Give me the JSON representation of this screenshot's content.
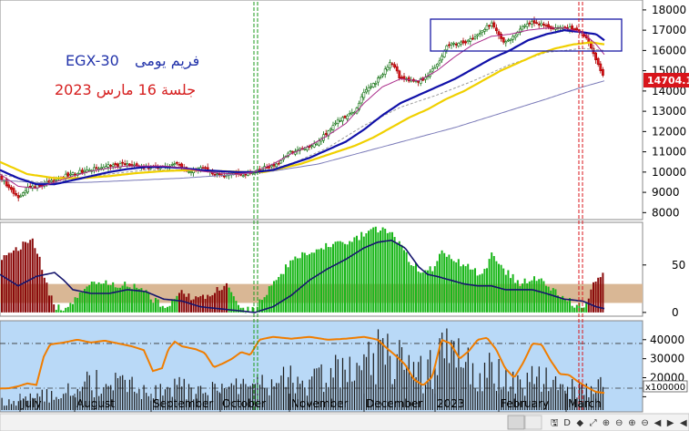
{
  "chart_data": {
    "type": "candlestick",
    "title_en": "EGX-30",
    "title_ar": "فريم يومى",
    "subtitle_ar": "جلسة 16 مارس 2023",
    "last_price_label": "14704.1",
    "price_axis": {
      "min": 7700,
      "max": 18400,
      "ticks": [
        8000,
        9000,
        10000,
        11000,
        12000,
        13000,
        14000,
        15000,
        16000,
        17000,
        18000
      ]
    },
    "indicator_axis": {
      "min": -3,
      "max": 93,
      "ticks": [
        0,
        50
      ],
      "band": [
        10,
        30
      ]
    },
    "volume_axis": {
      "min": 3000,
      "max": 49000,
      "ticks": [
        10000,
        20000,
        30000,
        40000
      ],
      "ticks_label": [
        "10000",
        "20000",
        "30000",
        "40000"
      ],
      "dash_levels": [
        38000,
        14500
      ],
      "unit_label": "x100000"
    },
    "month_labels": [
      "July",
      "August",
      "September",
      "October",
      "November",
      "December",
      "2023",
      "February",
      "March"
    ],
    "month_positions": [
      24,
      84,
      168,
      244,
      320,
      402,
      480,
      550,
      624
    ],
    "nav_icons": [
      "scroll-bar",
      "save-icon",
      "delete-icon",
      "drag-icon",
      "zoom-in-icon",
      "zoom-out-icon",
      "plus-icon",
      "minus-icon",
      "back-icon",
      "forward-icon",
      "toggle-icon"
    ],
    "price_anchors": [
      [
        0,
        9800
      ],
      [
        5,
        9500
      ],
      [
        10,
        9200
      ],
      [
        16,
        8900
      ],
      [
        20,
        8700
      ],
      [
        25,
        9000
      ],
      [
        30,
        9200
      ],
      [
        40,
        9300
      ],
      [
        55,
        9500
      ],
      [
        70,
        9800
      ],
      [
        85,
        10000
      ],
      [
        95,
        10050
      ],
      [
        105,
        10200
      ],
      [
        120,
        10300
      ],
      [
        135,
        10400
      ],
      [
        150,
        10300
      ],
      [
        165,
        10200
      ],
      [
        180,
        10300
      ],
      [
        195,
        10400
      ],
      [
        205,
        10000
      ],
      [
        215,
        10100
      ],
      [
        225,
        10200
      ],
      [
        235,
        9900
      ],
      [
        245,
        9800
      ],
      [
        255,
        9900
      ],
      [
        265,
        9850
      ],
      [
        280,
        10000
      ],
      [
        290,
        10200
      ],
      [
        300,
        10300
      ],
      [
        310,
        10600
      ],
      [
        320,
        11000
      ],
      [
        330,
        11100
      ],
      [
        340,
        11200
      ],
      [
        350,
        11500
      ],
      [
        360,
        12000
      ],
      [
        370,
        12500
      ],
      [
        380,
        12700
      ],
      [
        390,
        13000
      ],
      [
        400,
        14000
      ],
      [
        410,
        14300
      ],
      [
        420,
        14800
      ],
      [
        430,
        15500
      ],
      [
        440,
        14600
      ],
      [
        450,
        14500
      ],
      [
        460,
        14500
      ],
      [
        470,
        14700
      ],
      [
        478,
        15200
      ],
      [
        485,
        15600
      ],
      [
        490,
        16200
      ],
      [
        500,
        16300
      ],
      [
        510,
        16400
      ],
      [
        520,
        16600
      ],
      [
        530,
        17000
      ],
      [
        540,
        17300
      ],
      [
        548,
        16700
      ],
      [
        555,
        16400
      ],
      [
        565,
        16700
      ],
      [
        575,
        17200
      ],
      [
        585,
        17400
      ],
      [
        595,
        17300
      ],
      [
        605,
        17100
      ],
      [
        615,
        17100
      ],
      [
        625,
        17100
      ],
      [
        635,
        17000
      ],
      [
        640,
        16800
      ],
      [
        645,
        16500
      ],
      [
        650,
        16000
      ],
      [
        655,
        15500
      ],
      [
        660,
        14900
      ],
      [
        664,
        14700
      ]
    ],
    "ma_fast": [
      [
        0,
        9900
      ],
      [
        20,
        9300
      ],
      [
        40,
        9200
      ],
      [
        60,
        9500
      ],
      [
        80,
        9800
      ],
      [
        100,
        10050
      ],
      [
        120,
        10200
      ],
      [
        140,
        10300
      ],
      [
        160,
        10300
      ],
      [
        180,
        10300
      ],
      [
        200,
        10200
      ],
      [
        220,
        10050
      ],
      [
        240,
        9950
      ],
      [
        260,
        9900
      ],
      [
        280,
        10000
      ],
      [
        300,
        10400
      ],
      [
        320,
        10900
      ],
      [
        340,
        11300
      ],
      [
        360,
        11800
      ],
      [
        380,
        12400
      ],
      [
        400,
        13400
      ],
      [
        420,
        14200
      ],
      [
        440,
        14600
      ],
      [
        460,
        14500
      ],
      [
        480,
        15000
      ],
      [
        500,
        15700
      ],
      [
        520,
        16300
      ],
      [
        540,
        16700
      ],
      [
        560,
        16800
      ],
      [
        580,
        17000
      ],
      [
        600,
        17100
      ],
      [
        620,
        17100
      ],
      [
        640,
        16900
      ],
      [
        655,
        16300
      ],
      [
        664,
        15800
      ]
    ],
    "ma_blue": [
      [
        0,
        10100
      ],
      [
        20,
        9700
      ],
      [
        40,
        9400
      ],
      [
        60,
        9400
      ],
      [
        80,
        9600
      ],
      [
        100,
        9800
      ],
      [
        120,
        10000
      ],
      [
        140,
        10150
      ],
      [
        160,
        10250
      ],
      [
        180,
        10250
      ],
      [
        200,
        10200
      ],
      [
        220,
        10100
      ],
      [
        240,
        10050
      ],
      [
        260,
        10000
      ],
      [
        280,
        10000
      ],
      [
        300,
        10100
      ],
      [
        320,
        10400
      ],
      [
        340,
        10700
      ],
      [
        360,
        11100
      ],
      [
        380,
        11500
      ],
      [
        400,
        12100
      ],
      [
        420,
        12800
      ],
      [
        440,
        13400
      ],
      [
        460,
        13800
      ],
      [
        480,
        14200
      ],
      [
        500,
        14600
      ],
      [
        520,
        15100
      ],
      [
        540,
        15600
      ],
      [
        560,
        16000
      ],
      [
        580,
        16500
      ],
      [
        600,
        16800
      ],
      [
        620,
        17000
      ],
      [
        640,
        16900
      ],
      [
        655,
        16800
      ],
      [
        664,
        16500
      ]
    ],
    "ma_yellow": [
      [
        0,
        10500
      ],
      [
        30,
        9900
      ],
      [
        60,
        9700
      ],
      [
        90,
        9700
      ],
      [
        120,
        9800
      ],
      [
        150,
        9950
      ],
      [
        180,
        10050
      ],
      [
        210,
        10100
      ],
      [
        240,
        10050
      ],
      [
        270,
        10000
      ],
      [
        290,
        10000
      ],
      [
        310,
        10200
      ],
      [
        330,
        10400
      ],
      [
        350,
        10700
      ],
      [
        370,
        11000
      ],
      [
        390,
        11300
      ],
      [
        410,
        11700
      ],
      [
        430,
        12200
      ],
      [
        450,
        12700
      ],
      [
        470,
        13100
      ],
      [
        490,
        13600
      ],
      [
        510,
        14000
      ],
      [
        530,
        14500
      ],
      [
        550,
        15000
      ],
      [
        570,
        15400
      ],
      [
        590,
        15800
      ],
      [
        610,
        16100
      ],
      [
        630,
        16300
      ],
      [
        650,
        16400
      ],
      [
        664,
        16300
      ]
    ],
    "ma_long": [
      [
        0,
        9600
      ],
      [
        50,
        9450
      ],
      [
        100,
        9500
      ],
      [
        150,
        9600
      ],
      [
        200,
        9700
      ],
      [
        250,
        9850
      ],
      [
        300,
        10050
      ],
      [
        350,
        10400
      ],
      [
        400,
        11000
      ],
      [
        450,
        11600
      ],
      [
        500,
        12200
      ],
      [
        550,
        12900
      ],
      [
        600,
        13600
      ],
      [
        640,
        14200
      ],
      [
        664,
        14500
      ]
    ],
    "ma_thin": [
      [
        0,
        9900
      ],
      [
        40,
        9500
      ],
      [
        80,
        9600
      ],
      [
        120,
        9900
      ],
      [
        160,
        10100
      ],
      [
        200,
        10100
      ],
      [
        240,
        10000
      ],
      [
        280,
        9950
      ],
      [
        320,
        10400
      ],
      [
        360,
        11200
      ],
      [
        400,
        12300
      ],
      [
        440,
        13200
      ],
      [
        480,
        13800
      ],
      [
        520,
        14500
      ],
      [
        560,
        15300
      ],
      [
        600,
        15900
      ],
      [
        640,
        16100
      ],
      [
        664,
        16000
      ]
    ],
    "indicator_anchors": [
      [
        2,
        55
      ],
      [
        10,
        60
      ],
      [
        20,
        68
      ],
      [
        30,
        75
      ],
      [
        36,
        78
      ],
      [
        42,
        62
      ],
      [
        48,
        40
      ],
      [
        55,
        18
      ],
      [
        62,
        6
      ],
      [
        70,
        4
      ],
      [
        80,
        10
      ],
      [
        90,
        24
      ],
      [
        100,
        33
      ],
      [
        110,
        34
      ],
      [
        120,
        30
      ],
      [
        130,
        28
      ],
      [
        140,
        30
      ],
      [
        150,
        26
      ],
      [
        160,
        22
      ],
      [
        170,
        12
      ],
      [
        180,
        6
      ],
      [
        190,
        12
      ],
      [
        200,
        20
      ],
      [
        210,
        16
      ],
      [
        220,
        14
      ],
      [
        230,
        20
      ],
      [
        240,
        26
      ],
      [
        250,
        28
      ],
      [
        260,
        8
      ],
      [
        270,
        2
      ],
      [
        280,
        2
      ],
      [
        290,
        18
      ],
      [
        300,
        30
      ],
      [
        310,
        42
      ],
      [
        320,
        55
      ],
      [
        330,
        60
      ],
      [
        340,
        64
      ],
      [
        350,
        68
      ],
      [
        360,
        70
      ],
      [
        370,
        72
      ],
      [
        380,
        74
      ],
      [
        390,
        78
      ],
      [
        400,
        82
      ],
      [
        410,
        86
      ],
      [
        420,
        88
      ],
      [
        430,
        84
      ],
      [
        440,
        72
      ],
      [
        450,
        55
      ],
      [
        460,
        46
      ],
      [
        470,
        43
      ],
      [
        478,
        48
      ],
      [
        485,
        64
      ],
      [
        490,
        62
      ],
      [
        500,
        56
      ],
      [
        510,
        50
      ],
      [
        520,
        44
      ],
      [
        530,
        40
      ],
      [
        540,
        60
      ],
      [
        550,
        48
      ],
      [
        560,
        40
      ],
      [
        570,
        30
      ],
      [
        580,
        34
      ],
      [
        590,
        36
      ],
      [
        600,
        30
      ],
      [
        610,
        24
      ],
      [
        620,
        16
      ],
      [
        630,
        8
      ],
      [
        640,
        6
      ],
      [
        648,
        18
      ],
      [
        655,
        36
      ],
      [
        662,
        40
      ]
    ],
    "indicator_line": [
      [
        0,
        40
      ],
      [
        20,
        28
      ],
      [
        40,
        38
      ],
      [
        60,
        42
      ],
      [
        70,
        34
      ],
      [
        80,
        24
      ],
      [
        100,
        20
      ],
      [
        120,
        20
      ],
      [
        140,
        24
      ],
      [
        160,
        22
      ],
      [
        180,
        14
      ],
      [
        200,
        12
      ],
      [
        220,
        6
      ],
      [
        240,
        4
      ],
      [
        260,
        2
      ],
      [
        280,
        0
      ],
      [
        300,
        6
      ],
      [
        320,
        18
      ],
      [
        340,
        34
      ],
      [
        360,
        46
      ],
      [
        380,
        56
      ],
      [
        400,
        68
      ],
      [
        415,
        74
      ],
      [
        430,
        76
      ],
      [
        445,
        68
      ],
      [
        460,
        48
      ],
      [
        470,
        40
      ],
      [
        480,
        38
      ],
      [
        495,
        34
      ],
      [
        510,
        30
      ],
      [
        525,
        28
      ],
      [
        540,
        28
      ],
      [
        555,
        24
      ],
      [
        570,
        24
      ],
      [
        585,
        24
      ],
      [
        600,
        20
      ],
      [
        620,
        14
      ],
      [
        640,
        12
      ],
      [
        655,
        6
      ],
      [
        664,
        4
      ]
    ],
    "stoch_line": [
      [
        0,
        14300
      ],
      [
        10,
        14500
      ],
      [
        20,
        15500
      ],
      [
        30,
        17000
      ],
      [
        40,
        16200
      ],
      [
        48,
        31000
      ],
      [
        55,
        37500
      ],
      [
        70,
        38500
      ],
      [
        85,
        40000
      ],
      [
        100,
        38500
      ],
      [
        115,
        39500
      ],
      [
        130,
        38000
      ],
      [
        145,
        36500
      ],
      [
        158,
        34500
      ],
      [
        168,
        23500
      ],
      [
        178,
        25000
      ],
      [
        185,
        35000
      ],
      [
        192,
        39000
      ],
      [
        200,
        36500
      ],
      [
        215,
        35000
      ],
      [
        225,
        33000
      ],
      [
        235,
        25500
      ],
      [
        245,
        27500
      ],
      [
        255,
        30000
      ],
      [
        265,
        33500
      ],
      [
        275,
        32000
      ],
      [
        285,
        40000
      ],
      [
        300,
        41500
      ],
      [
        320,
        40500
      ],
      [
        340,
        41500
      ],
      [
        360,
        40000
      ],
      [
        380,
        40500
      ],
      [
        400,
        41500
      ],
      [
        415,
        40000
      ],
      [
        425,
        35500
      ],
      [
        435,
        31500
      ],
      [
        445,
        27000
      ],
      [
        455,
        19000
      ],
      [
        465,
        16000
      ],
      [
        475,
        20500
      ],
      [
        485,
        40000
      ],
      [
        495,
        38000
      ],
      [
        505,
        30000
      ],
      [
        515,
        34000
      ],
      [
        525,
        40000
      ],
      [
        535,
        41000
      ],
      [
        545,
        35000
      ],
      [
        555,
        25000
      ],
      [
        565,
        20000
      ],
      [
        575,
        28000
      ],
      [
        585,
        38000
      ],
      [
        595,
        37500
      ],
      [
        605,
        29000
      ],
      [
        615,
        22000
      ],
      [
        625,
        21500
      ],
      [
        635,
        18000
      ],
      [
        645,
        15000
      ],
      [
        655,
        12500
      ],
      [
        664,
        12000
      ]
    ],
    "volume_anchors": [
      [
        0,
        8000
      ],
      [
        30,
        10000
      ],
      [
        60,
        13000
      ],
      [
        90,
        22000
      ],
      [
        120,
        20000
      ],
      [
        150,
        17000
      ],
      [
        180,
        16000
      ],
      [
        210,
        18000
      ],
      [
        240,
        14000
      ],
      [
        270,
        18000
      ],
      [
        300,
        20000
      ],
      [
        330,
        24000
      ],
      [
        360,
        26000
      ],
      [
        390,
        30000
      ],
      [
        410,
        36000
      ],
      [
        430,
        40000
      ],
      [
        450,
        26000
      ],
      [
        470,
        28000
      ],
      [
        490,
        38000
      ],
      [
        510,
        32000
      ],
      [
        530,
        30000
      ],
      [
        550,
        26000
      ],
      [
        570,
        18000
      ],
      [
        590,
        24000
      ],
      [
        610,
        20000
      ],
      [
        630,
        16000
      ],
      [
        650,
        20000
      ],
      [
        664,
        22000
      ]
    ]
  }
}
